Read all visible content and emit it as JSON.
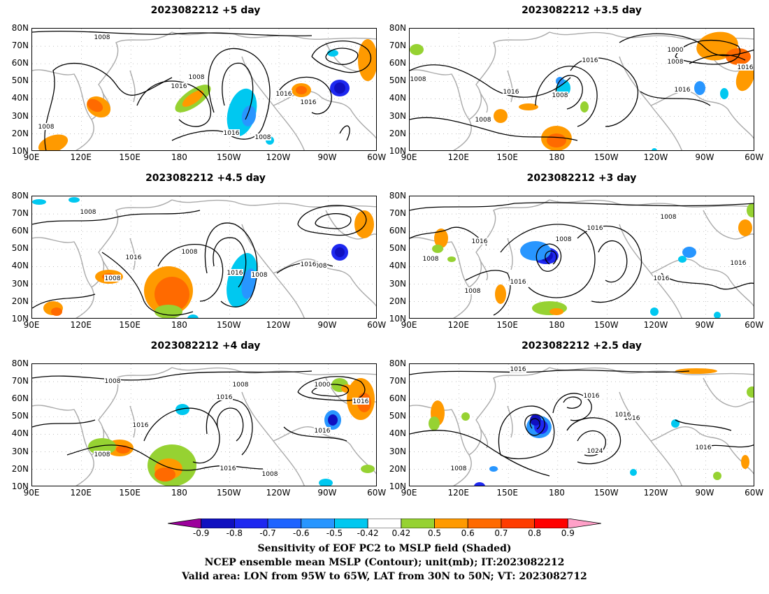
{
  "panels": [
    {
      "title": "2023082212 +5 day"
    },
    {
      "title": "2023082212 +3.5 day"
    },
    {
      "title": "2023082212 +4.5 day"
    },
    {
      "title": "2023082212 +3 day"
    },
    {
      "title": "2023082212 +4 day"
    },
    {
      "title": "2023082212 +2.5 day"
    }
  ],
  "lat_labels": [
    "80N",
    "70N",
    "60N",
    "50N",
    "40N",
    "30N",
    "20N",
    "10N"
  ],
  "lon_labels": [
    "90E",
    "120E",
    "150E",
    "180",
    "150W",
    "120W",
    "90W",
    "60W"
  ],
  "contour_values": [
    "1000",
    "1008",
    "1016",
    "1024"
  ],
  "colorbar": {
    "labels": [
      "-0.9",
      "-0.8",
      "-0.7",
      "-0.6",
      "-0.5",
      "-0.42",
      "0.42",
      "0.5",
      "0.6",
      "0.7",
      "0.8",
      "0.9"
    ],
    "colors": [
      "#9c009c",
      "#1010c0",
      "#1e28f0",
      "#1e64ff",
      "#2896ff",
      "#00c8f0",
      "#ffffff",
      "#96d232",
      "#ff9a00",
      "#ff6a00",
      "#ff3c00",
      "#ff0000",
      "#ffa0c8"
    ]
  },
  "caption": {
    "line1": "Sensitivity of EOF PC2 to MSLP field (Shaded)",
    "line2": "NCEP ensemble mean MSLP (Contour); unit(mb); IT:2023082212",
    "line3": "Valid area: LON from 95W to 65W, LAT from 30N to 50N; VT: 2023082712"
  }
}
